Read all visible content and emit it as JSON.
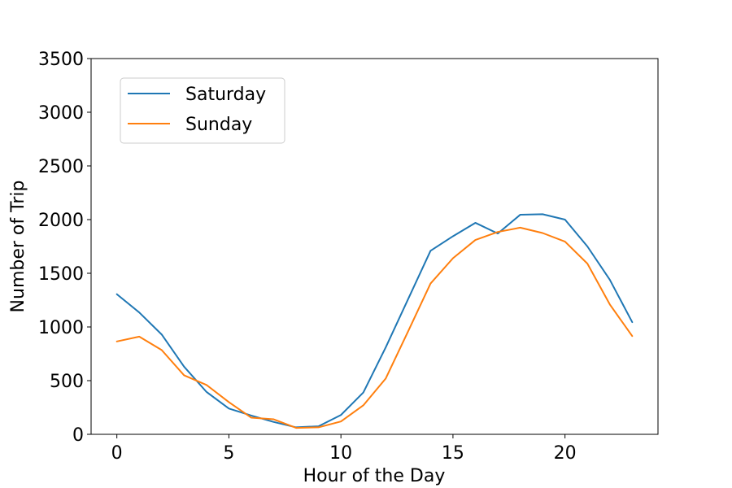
{
  "chart_data": {
    "type": "line",
    "title": "",
    "xlabel": "Hour of the Day",
    "ylabel": "Number of Trip",
    "xlim": [
      -1.15,
      24.15
    ],
    "ylim": [
      0,
      3500
    ],
    "xticks": [
      0,
      5,
      10,
      15,
      20
    ],
    "yticks": [
      0,
      500,
      1000,
      1500,
      2000,
      2500,
      3000,
      3500
    ],
    "grid": false,
    "legend_position": "upper-left",
    "x": [
      0,
      1,
      2,
      3,
      4,
      5,
      6,
      7,
      8,
      9,
      10,
      11,
      12,
      13,
      14,
      15,
      16,
      17,
      18,
      19,
      20,
      21,
      22,
      23
    ],
    "series": [
      {
        "name": "Saturday",
        "color": "#1f77b4",
        "values": [
          1305,
          1135,
          930,
          630,
          395,
          240,
          175,
          115,
          65,
          75,
          180,
          390,
          810,
          1260,
          1710,
          1845,
          1970,
          1870,
          2045,
          2050,
          2000,
          1750,
          1440,
          1045
        ]
      },
      {
        "name": "Sunday",
        "color": "#ff7f0e",
        "values": [
          865,
          910,
          785,
          550,
          460,
          300,
          155,
          140,
          60,
          65,
          120,
          270,
          520,
          960,
          1405,
          1640,
          1810,
          1885,
          1925,
          1875,
          1795,
          1590,
          1210,
          915
        ]
      }
    ]
  }
}
